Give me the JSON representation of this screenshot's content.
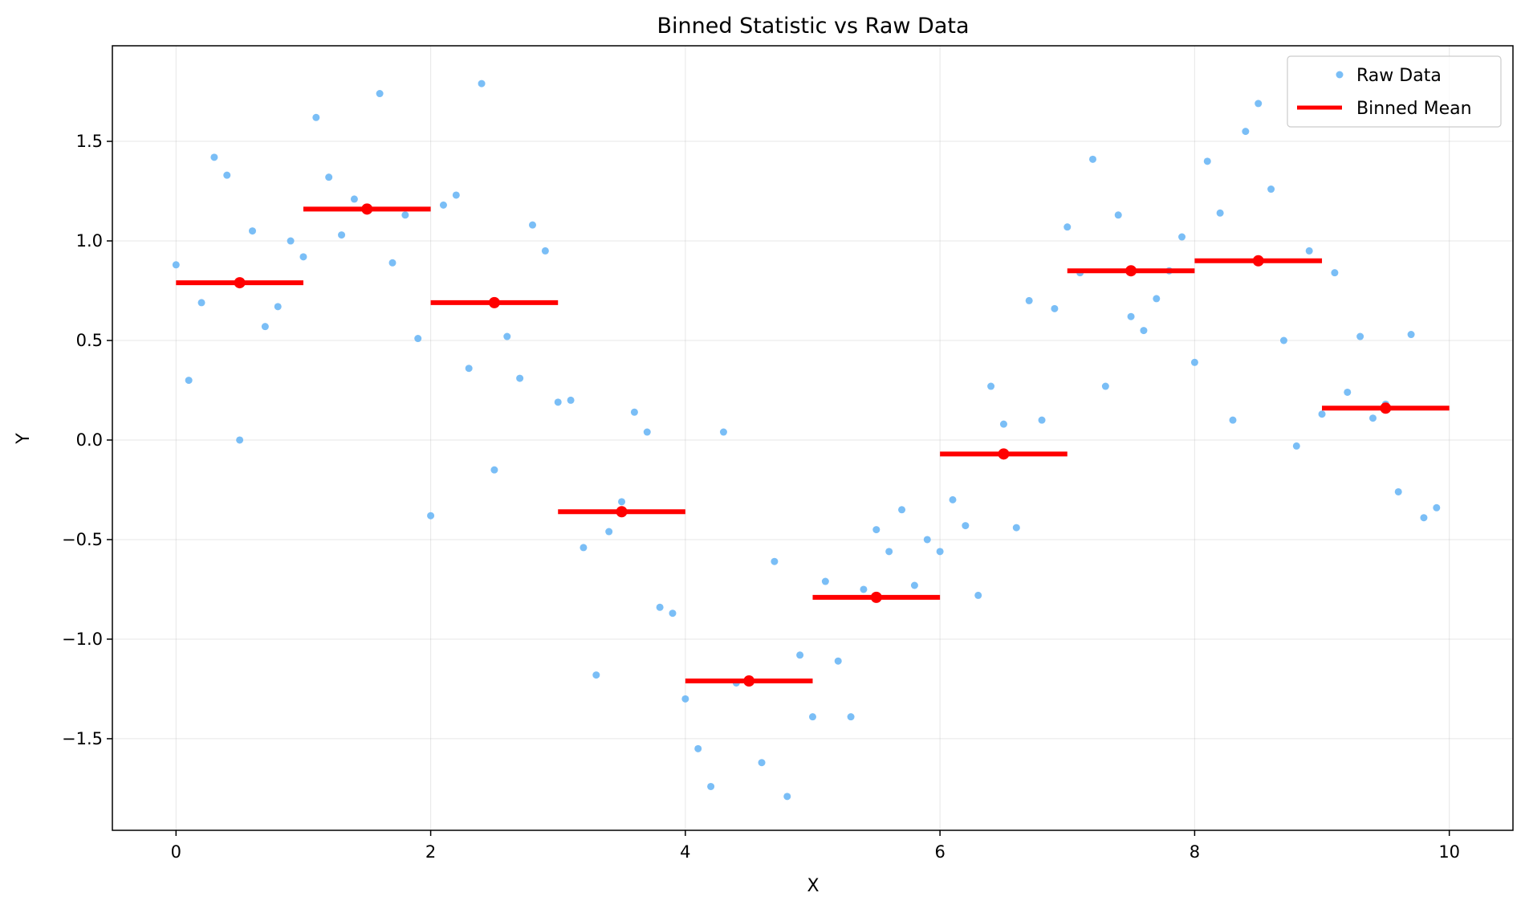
{
  "chart_data": {
    "type": "scatter",
    "title": "Binned Statistic vs Raw Data",
    "xlabel": "X",
    "ylabel": "Y",
    "xlim": [
      -0.5,
      10.5
    ],
    "ylim": [
      -1.96,
      1.98
    ],
    "grid": true,
    "legend_position": "top-right",
    "x_ticks": [
      0,
      2,
      4,
      6,
      8,
      10
    ],
    "x_tick_labels": [
      "0",
      "2",
      "4",
      "6",
      "8",
      "10"
    ],
    "y_ticks": [
      -1.5,
      -1.0,
      -0.5,
      0.0,
      0.5,
      1.0,
      1.5
    ],
    "y_tick_labels": [
      "−1.5",
      "−1.0",
      "−0.5",
      "0.0",
      "0.5",
      "1.0",
      "1.5"
    ],
    "series": [
      {
        "name": "Raw Data",
        "kind": "points",
        "color": "#63b3f5",
        "points": [
          [
            0.0,
            0.88
          ],
          [
            0.1,
            0.3
          ],
          [
            0.2,
            0.69
          ],
          [
            0.3,
            1.42
          ],
          [
            0.4,
            1.33
          ],
          [
            0.5,
            0.0
          ],
          [
            0.6,
            1.05
          ],
          [
            0.7,
            0.57
          ],
          [
            0.8,
            0.67
          ],
          [
            0.9,
            1.0
          ],
          [
            1.0,
            0.92
          ],
          [
            1.1,
            1.62
          ],
          [
            1.2,
            1.32
          ],
          [
            1.3,
            1.03
          ],
          [
            1.4,
            1.21
          ],
          [
            1.6,
            1.74
          ],
          [
            1.7,
            0.89
          ],
          [
            1.8,
            1.13
          ],
          [
            1.9,
            0.51
          ],
          [
            2.0,
            -0.38
          ],
          [
            2.1,
            1.18
          ],
          [
            2.2,
            1.23
          ],
          [
            2.3,
            0.36
          ],
          [
            2.4,
            1.79
          ],
          [
            2.5,
            -0.15
          ],
          [
            2.6,
            0.52
          ],
          [
            2.7,
            0.31
          ],
          [
            2.8,
            1.08
          ],
          [
            2.9,
            0.95
          ],
          [
            3.0,
            0.19
          ],
          [
            3.1,
            0.2
          ],
          [
            3.2,
            -0.54
          ],
          [
            3.3,
            -1.18
          ],
          [
            3.4,
            -0.46
          ],
          [
            3.5,
            -0.31
          ],
          [
            3.6,
            0.14
          ],
          [
            3.7,
            0.04
          ],
          [
            3.8,
            -0.84
          ],
          [
            3.9,
            -0.87
          ],
          [
            4.0,
            -1.3
          ],
          [
            4.1,
            -1.55
          ],
          [
            4.2,
            -1.74
          ],
          [
            4.3,
            0.04
          ],
          [
            4.4,
            -1.22
          ],
          [
            4.6,
            -1.62
          ],
          [
            4.7,
            -0.61
          ],
          [
            4.8,
            -1.79
          ],
          [
            4.9,
            -1.08
          ],
          [
            5.0,
            -1.39
          ],
          [
            5.1,
            -0.71
          ],
          [
            5.2,
            -1.11
          ],
          [
            5.3,
            -1.39
          ],
          [
            5.4,
            -0.75
          ],
          [
            5.5,
            -0.45
          ],
          [
            5.6,
            -0.56
          ],
          [
            5.7,
            -0.35
          ],
          [
            5.8,
            -0.73
          ],
          [
            5.9,
            -0.5
          ],
          [
            6.0,
            -0.56
          ],
          [
            6.1,
            -0.3
          ],
          [
            6.2,
            -0.43
          ],
          [
            6.3,
            -0.78
          ],
          [
            6.4,
            0.27
          ],
          [
            6.5,
            0.08
          ],
          [
            6.6,
            -0.44
          ],
          [
            6.7,
            0.7
          ],
          [
            6.8,
            0.1
          ],
          [
            6.9,
            0.66
          ],
          [
            7.0,
            1.07
          ],
          [
            7.1,
            0.84
          ],
          [
            7.2,
            1.41
          ],
          [
            7.3,
            0.27
          ],
          [
            7.4,
            1.13
          ],
          [
            7.5,
            0.62
          ],
          [
            7.6,
            0.55
          ],
          [
            7.7,
            0.71
          ],
          [
            7.8,
            0.85
          ],
          [
            7.9,
            1.02
          ],
          [
            8.0,
            0.39
          ],
          [
            8.1,
            1.4
          ],
          [
            8.2,
            1.14
          ],
          [
            8.3,
            0.1
          ],
          [
            8.4,
            1.55
          ],
          [
            8.5,
            1.69
          ],
          [
            8.6,
            1.26
          ],
          [
            8.7,
            0.5
          ],
          [
            8.8,
            -0.03
          ],
          [
            8.9,
            0.95
          ],
          [
            9.0,
            0.13
          ],
          [
            9.1,
            0.84
          ],
          [
            9.2,
            0.24
          ],
          [
            9.3,
            0.52
          ],
          [
            9.4,
            0.11
          ],
          [
            9.5,
            0.18
          ],
          [
            9.6,
            -0.26
          ],
          [
            9.7,
            0.53
          ],
          [
            9.8,
            -0.39
          ],
          [
            9.9,
            -0.34
          ]
        ]
      },
      {
        "name": "Binned Mean",
        "kind": "bins",
        "color": "#ff0000",
        "bins": [
          {
            "start": 0,
            "end": 1,
            "center": 0.5,
            "value": 0.79
          },
          {
            "start": 1,
            "end": 2,
            "center": 1.5,
            "value": 1.16
          },
          {
            "start": 2,
            "end": 3,
            "center": 2.5,
            "value": 0.69
          },
          {
            "start": 3,
            "end": 4,
            "center": 3.5,
            "value": -0.36
          },
          {
            "start": 4,
            "end": 5,
            "center": 4.5,
            "value": -1.21
          },
          {
            "start": 5,
            "end": 6,
            "center": 5.5,
            "value": -0.79
          },
          {
            "start": 6,
            "end": 7,
            "center": 6.5,
            "value": -0.07
          },
          {
            "start": 7,
            "end": 8,
            "center": 7.5,
            "value": 0.85
          },
          {
            "start": 8,
            "end": 9,
            "center": 8.5,
            "value": 0.9
          },
          {
            "start": 9,
            "end": 10,
            "center": 9.5,
            "value": 0.16
          }
        ]
      }
    ]
  }
}
